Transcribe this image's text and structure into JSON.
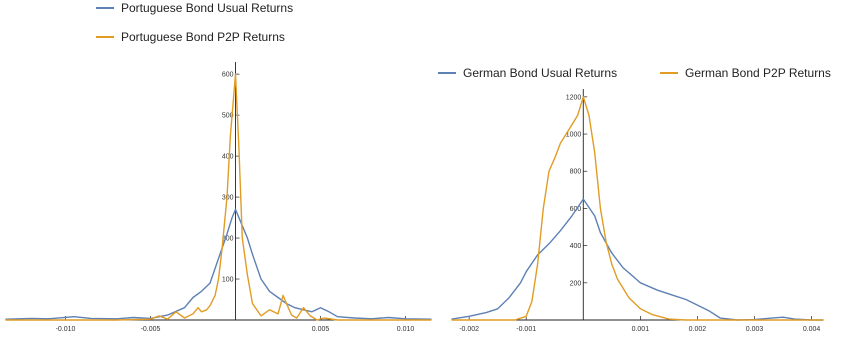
{
  "colors": {
    "usual": "#5e81b5",
    "p2p": "#e19c24"
  },
  "chart_data": [
    {
      "type": "line",
      "title": "",
      "xlabel": "",
      "ylabel": "",
      "xlim": [
        -0.0135,
        0.0115
      ],
      "ylim": [
        0,
        615
      ],
      "grid": false,
      "legend_position": "top-left (stacked)",
      "x_ticks": [
        -0.01,
        -0.005,
        0.005,
        0.01
      ],
      "x_tick_labels": [
        "-0.010",
        "-0.005",
        "0.005",
        "0.010"
      ],
      "y_ticks": [
        100,
        200,
        300,
        400,
        500,
        600
      ],
      "y_tick_labels": [
        "100",
        "200",
        "300",
        "400",
        "500",
        "600"
      ],
      "series": [
        {
          "name": "Portuguese Bond Usual Returns",
          "color_key": "usual",
          "x": [
            -0.0135,
            -0.012,
            -0.011,
            -0.0095,
            -0.0085,
            -0.007,
            -0.006,
            -0.005,
            -0.004,
            -0.003,
            -0.0025,
            -0.002,
            -0.0015,
            -0.001,
            -0.0005,
            -0.0002,
            0.0,
            0.0003,
            0.0007,
            0.001,
            0.0015,
            0.002,
            0.0025,
            0.003,
            0.0035,
            0.004,
            0.0045,
            0.005,
            0.0055,
            0.006,
            0.007,
            0.008,
            0.009,
            0.01,
            0.0115
          ],
          "y": [
            2,
            4,
            3,
            8,
            4,
            3,
            6,
            4,
            12,
            30,
            55,
            70,
            90,
            150,
            210,
            250,
            270,
            240,
            200,
            160,
            100,
            70,
            55,
            40,
            30,
            25,
            20,
            30,
            20,
            8,
            5,
            3,
            6,
            3,
            2
          ]
        },
        {
          "name": "Portuguese Bond P2P Returns",
          "color_key": "p2p",
          "x": [
            -0.0135,
            -0.01,
            -0.007,
            -0.005,
            -0.0045,
            -0.004,
            -0.0035,
            -0.003,
            -0.0025,
            -0.0022,
            -0.002,
            -0.0017,
            -0.0015,
            -0.0012,
            -0.001,
            -0.0008,
            -0.0005,
            -0.0003,
            -0.0002,
            0.0,
            0.0002,
            0.0004,
            0.0007,
            0.001,
            0.0015,
            0.002,
            0.0025,
            0.0028,
            0.003,
            0.0033,
            0.0036,
            0.004,
            0.0044,
            0.0048,
            0.0052,
            0.006,
            0.008,
            0.0115
          ],
          "y": [
            0,
            0,
            0,
            2,
            10,
            2,
            20,
            5,
            15,
            30,
            20,
            25,
            35,
            60,
            100,
            170,
            300,
            450,
            500,
            600,
            420,
            200,
            110,
            40,
            10,
            25,
            15,
            60,
            40,
            12,
            5,
            30,
            10,
            0,
            5,
            0,
            0,
            0
          ]
        }
      ]
    },
    {
      "type": "line",
      "title": "",
      "xlabel": "",
      "ylabel": "",
      "xlim": [
        -0.0023,
        0.0042
      ],
      "ylim": [
        0,
        1210
      ],
      "grid": false,
      "legend_position": "top (single row)",
      "x_ticks": [
        -0.002,
        -0.001,
        0.001,
        0.002,
        0.003,
        0.004
      ],
      "x_tick_labels": [
        "-0.002",
        "-0.001",
        "0.001",
        "0.002",
        "0.003",
        "0.004"
      ],
      "y_ticks": [
        200,
        400,
        600,
        800,
        1000,
        1200
      ],
      "y_tick_labels": [
        "200",
        "400",
        "600",
        "800",
        "1000",
        "1200"
      ],
      "series": [
        {
          "name": "German Bond Usual Returns",
          "color_key": "usual",
          "x": [
            -0.0023,
            -0.002,
            -0.0017,
            -0.0015,
            -0.0013,
            -0.0011,
            -0.001,
            -0.0008,
            -0.0006,
            -0.0004,
            -0.0002,
            0.0,
            0.0002,
            0.0003,
            0.0005,
            0.0007,
            0.001,
            0.0013,
            0.0016,
            0.0018,
            0.002,
            0.0022,
            0.0024,
            0.0027,
            0.003,
            0.0033,
            0.0035,
            0.0037,
            0.004,
            0.0042
          ],
          "y": [
            5,
            20,
            40,
            60,
            120,
            200,
            260,
            350,
            410,
            480,
            560,
            650,
            560,
            470,
            360,
            280,
            200,
            160,
            130,
            110,
            80,
            50,
            10,
            0,
            2,
            10,
            15,
            5,
            0,
            0
          ]
        },
        {
          "name": "German Bond P2P Returns",
          "color_key": "p2p",
          "x": [
            -0.0023,
            -0.0012,
            -0.001,
            -0.0009,
            -0.0008,
            -0.0007,
            -0.0006,
            -0.0005,
            -0.0004,
            -0.0003,
            -0.0002,
            -0.0001,
            0.0,
            0.0001,
            0.0002,
            0.0003,
            0.0004,
            0.0005,
            0.0006,
            0.0008,
            0.001,
            0.0012,
            0.0015,
            0.0018,
            0.002,
            0.0042
          ],
          "y": [
            0,
            0,
            20,
            100,
            300,
            600,
            800,
            870,
            950,
            1000,
            1050,
            1100,
            1200,
            1100,
            900,
            600,
            420,
            300,
            220,
            120,
            60,
            30,
            5,
            0,
            0,
            0
          ]
        }
      ]
    }
  ]
}
